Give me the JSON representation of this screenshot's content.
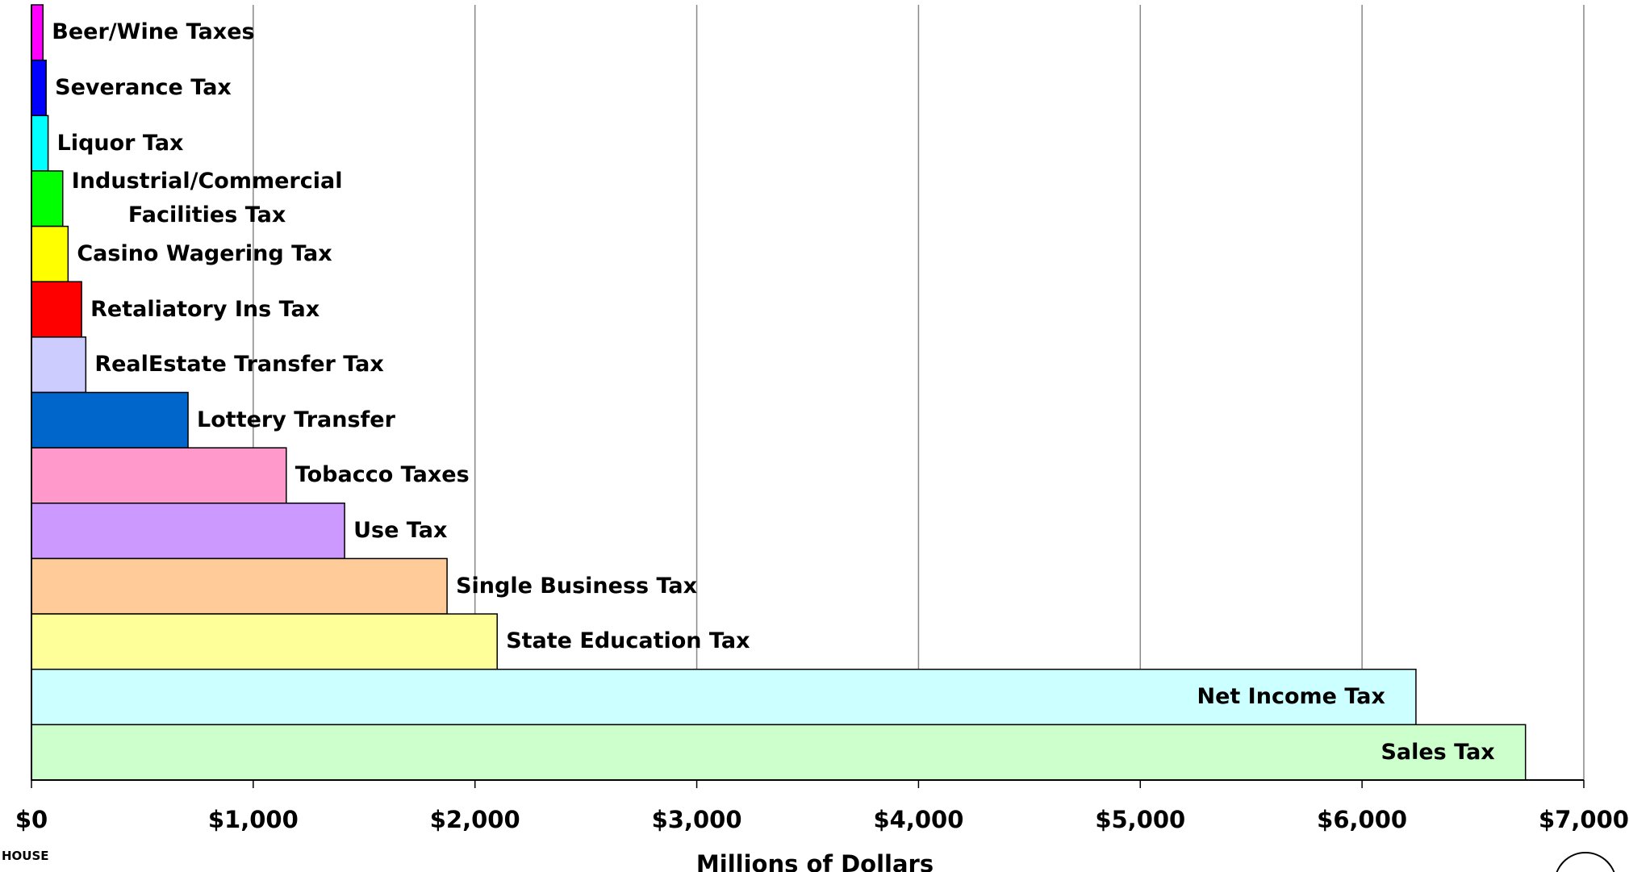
{
  "chart_data": {
    "type": "bar",
    "orientation": "horizontal",
    "x_label": "Millions of Dollars",
    "logo_text": "HOUSE",
    "categories": [
      "Beer/Wine Taxes",
      "Severance Tax",
      "Liquor Tax",
      "Industrial/Commercial\nFacilities Tax",
      "Casino Wagering Tax",
      "Retaliatory Ins Tax",
      "RealEstate Transfer Tax",
      "Lottery Transfer",
      "Tobacco Taxes",
      "Use Tax",
      "Single Business Tax",
      "State Education Tax",
      "Net Income Tax",
      "Sales Tax"
    ],
    "values": [
      52,
      66,
      75,
      141,
      165,
      226,
      245,
      706,
      1149,
      1412,
      1874,
      2100,
      6243,
      6737
    ],
    "colors": [
      "#ff00ff",
      "#0000ff",
      "#00ffff",
      "#00ff00",
      "#ffff00",
      "#ff0000",
      "#ccccff",
      "#0066cc",
      "#ff99cc",
      "#cc99ff",
      "#ffcc99",
      "#ffff99",
      "#ccffff",
      "#ccffcc"
    ],
    "xlim": [
      0,
      7000
    ],
    "xticks": [
      {
        "value": 0,
        "label": "$0"
      },
      {
        "value": 1000,
        "label": "$1,000"
      },
      {
        "value": 2000,
        "label": "$2,000"
      },
      {
        "value": 3000,
        "label": "$3,000"
      },
      {
        "value": 4000,
        "label": "$4,000"
      },
      {
        "value": 5000,
        "label": "$5,000"
      },
      {
        "value": 6000,
        "label": "$6,000"
      },
      {
        "value": 7000,
        "label": "$7,000"
      }
    ],
    "grid": true
  }
}
